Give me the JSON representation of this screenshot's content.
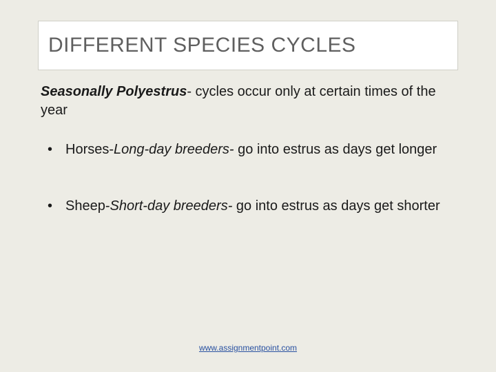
{
  "colors": {
    "slide_bg": "#edece5",
    "title_border": "#d0cfc7",
    "title_box_bg": "#ffffff",
    "title_color": "#5f5f5f",
    "body_color": "#1a1a1a",
    "link_color": "#2850a0"
  },
  "typography": {
    "title_fontsize": 30,
    "body_fontsize": 20,
    "link_fontsize": 12
  },
  "title": "DIFFERENT SPECIES CYCLES",
  "subtitle_prefix": "Seasonally Polyestrus",
  "subtitle_rest": "- cycles occur only at certain times of the year",
  "bullets": [
    {
      "lead_plain": "Horses-",
      "lead_italic": "Long-day breeders-",
      "rest": " go into estrus as days get longer"
    },
    {
      "lead_plain": "Sheep-",
      "lead_italic": "Short-day breeders-",
      "rest": " go into estrus as days get shorter"
    }
  ],
  "footer_link": "www.assignmentpoint.com"
}
